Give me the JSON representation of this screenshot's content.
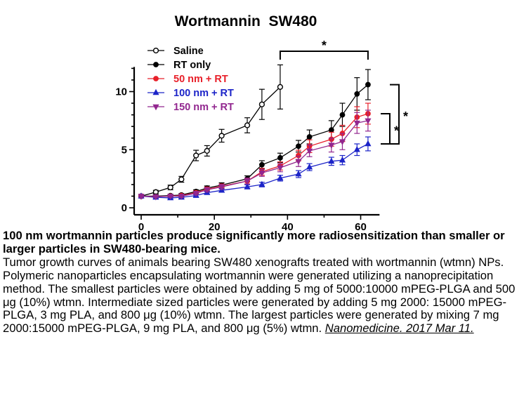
{
  "chart_data": {
    "type": "line",
    "title": "Wortmannin  SW480",
    "xlabel": "",
    "ylabel": "",
    "xlim": [
      0,
      64
    ],
    "ylim": [
      0,
      12
    ],
    "xticks": [
      0,
      20,
      40,
      60
    ],
    "yticks": [
      0,
      5,
      10
    ],
    "xtick_labels": [
      "0",
      "20",
      "40",
      "60"
    ],
    "ytick_labels": [
      "0",
      "5",
      "10"
    ],
    "legend_position": "top-left",
    "series": [
      {
        "name": "Saline",
        "color": "#000000",
        "marker": "open-circle",
        "x": [
          0,
          4,
          8,
          11,
          15,
          18,
          22,
          29,
          33,
          38
        ],
        "y": [
          1.0,
          1.35,
          1.75,
          2.45,
          4.5,
          4.9,
          6.2,
          7.1,
          8.9,
          10.4
        ],
        "err": [
          0.1,
          0.15,
          0.2,
          0.25,
          0.45,
          0.45,
          0.55,
          0.65,
          1.3,
          1.9
        ]
      },
      {
        "name": "RT only",
        "color": "#000000",
        "marker": "filled-circle",
        "x": [
          0,
          4,
          8,
          11,
          15,
          18,
          22,
          29,
          33,
          38,
          43,
          46,
          52,
          55,
          59,
          62
        ],
        "y": [
          1.0,
          1.0,
          1.05,
          1.1,
          1.4,
          1.7,
          1.95,
          2.5,
          3.7,
          4.3,
          5.3,
          6.1,
          6.7,
          8.0,
          9.8,
          10.6
        ],
        "err": [
          0.1,
          0.1,
          0.1,
          0.12,
          0.15,
          0.18,
          0.2,
          0.25,
          0.35,
          0.4,
          0.5,
          0.6,
          0.8,
          1.0,
          1.4,
          1.3
        ]
      },
      {
        "name": "50 nm + RT",
        "color": "#e8202a",
        "marker": "filled-circle",
        "x": [
          0,
          4,
          8,
          11,
          15,
          18,
          22,
          29,
          33,
          38,
          43,
          46,
          52,
          55,
          59,
          62
        ],
        "y": [
          1.0,
          0.95,
          1.0,
          1.05,
          1.3,
          1.6,
          1.85,
          2.3,
          3.1,
          3.6,
          4.5,
          5.3,
          5.9,
          6.4,
          7.8,
          8.1
        ],
        "err": [
          0.1,
          0.1,
          0.1,
          0.12,
          0.15,
          0.18,
          0.2,
          0.25,
          0.3,
          0.35,
          0.45,
          0.55,
          0.6,
          0.7,
          0.9,
          0.9
        ]
      },
      {
        "name": "100 nm + RT",
        "color": "#1c24c8",
        "marker": "filled-triangle-up",
        "x": [
          0,
          4,
          8,
          11,
          15,
          18,
          22,
          29,
          33,
          38,
          43,
          46,
          52,
          55,
          59,
          62
        ],
        "y": [
          1.0,
          0.9,
          0.85,
          0.9,
          1.05,
          1.3,
          1.5,
          1.8,
          2.0,
          2.55,
          2.9,
          3.5,
          4.0,
          4.1,
          5.0,
          5.5
        ],
        "err": [
          0.08,
          0.08,
          0.08,
          0.08,
          0.1,
          0.12,
          0.15,
          0.18,
          0.2,
          0.25,
          0.3,
          0.3,
          0.35,
          0.4,
          0.5,
          0.6
        ]
      },
      {
        "name": "150 nm + RT",
        "color": "#92278f",
        "marker": "filled-triangle-down",
        "x": [
          0,
          4,
          8,
          11,
          15,
          18,
          22,
          29,
          33,
          38,
          43,
          46,
          52,
          55,
          59,
          62
        ],
        "y": [
          1.0,
          0.95,
          1.0,
          1.0,
          1.25,
          1.55,
          1.8,
          2.3,
          3.0,
          3.45,
          4.0,
          4.9,
          5.4,
          5.7,
          7.3,
          7.5
        ],
        "err": [
          0.1,
          0.1,
          0.1,
          0.12,
          0.15,
          0.18,
          0.2,
          0.25,
          0.3,
          0.35,
          0.45,
          0.5,
          0.6,
          0.7,
          0.9,
          0.9
        ]
      }
    ],
    "annotations": [
      {
        "label": "*",
        "type": "bracket-top",
        "from_x": 38,
        "to_x": 62
      },
      {
        "label": "*",
        "type": "bracket-right",
        "from_y": 10.6,
        "to_y": 5.5
      },
      {
        "label": "*",
        "type": "bracket-right",
        "from_y": 8.1,
        "to_y": 5.5
      }
    ]
  },
  "caption": {
    "heading": "100 nm wortmannin particles produce significantly more radiosensitization than smaller or larger particles in SW480-bearing mice.",
    "body": "Tumor growth curves of animals bearing SW480 xenografts treated with wortmannin (wtmn) NPs. Polymeric nanoparticles encapsulating wortmannin were generated utilizing a nanoprecipitation method. The smallest particles were obtained by adding 5 mg of 5000:10000 mPEG-PLGA and 500 μg (10%) wtmn. Intermediate sized particles were generated by adding 5 mg 2000: 15000 mPEG-PLGA, 3 mg PLA, and 800 μg (10%) wtmn. The largest particles were generated by mixing 7 mg 2000:15000 mPEG-PLGA, 9 mg PLA, and 800 μg (5%) wtmn.",
    "citation": "Nanomedicine. 2017 Mar 11."
  }
}
